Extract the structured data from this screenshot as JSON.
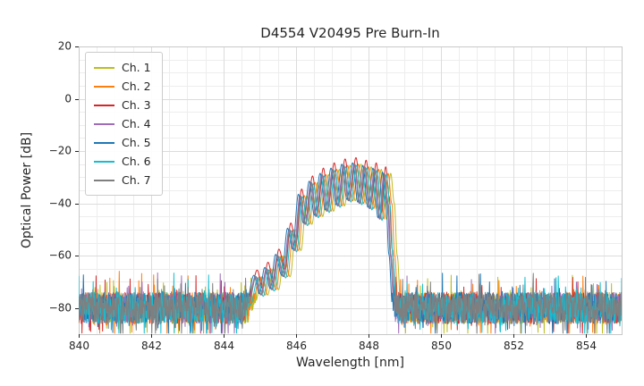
{
  "chart_data": {
    "type": "line",
    "title": "D4554 V20495 Pre Burn-In",
    "xlabel": "Wavelength [nm]",
    "ylabel": "Optical Power [dB]",
    "xlim": [
      840,
      855
    ],
    "ylim": [
      -90,
      20
    ],
    "xticks": [
      840,
      842,
      844,
      846,
      848,
      850,
      852,
      854
    ],
    "yticks": [
      20,
      0,
      -20,
      -40,
      -60,
      -80
    ],
    "minor_grid": {
      "x_step": 0.5,
      "y_step": 5
    },
    "grid": true,
    "legend_position": "upper left",
    "noise_floor": {
      "mean_db": -80,
      "span_db": 12,
      "spike_prob": 0.12,
      "spike_span_db": 18,
      "seed": 424242
    },
    "envelope_points": [
      [
        844.55,
        -88
      ],
      [
        844.75,
        -78
      ],
      [
        844.95,
        -68
      ],
      [
        845.1,
        -75
      ],
      [
        845.25,
        -65
      ],
      [
        845.4,
        -73
      ],
      [
        845.55,
        -60
      ],
      [
        845.72,
        -68
      ],
      [
        845.88,
        -50
      ],
      [
        846.02,
        -58
      ],
      [
        846.18,
        -37
      ],
      [
        846.32,
        -48
      ],
      [
        846.48,
        -32
      ],
      [
        846.62,
        -45
      ],
      [
        846.78,
        -29
      ],
      [
        846.92,
        -43
      ],
      [
        847.08,
        -27
      ],
      [
        847.22,
        -41
      ],
      [
        847.38,
        -25.5
      ],
      [
        847.52,
        -39
      ],
      [
        847.68,
        -25
      ],
      [
        847.82,
        -40
      ],
      [
        847.96,
        -26
      ],
      [
        848.1,
        -42
      ],
      [
        848.24,
        -27
      ],
      [
        848.38,
        -46
      ],
      [
        848.5,
        -28.5
      ],
      [
        848.6,
        -40
      ],
      [
        848.68,
        -60
      ],
      [
        848.78,
        -80
      ],
      [
        848.88,
        -95
      ]
    ],
    "series": [
      {
        "name": "Ch. 1",
        "color": "#bcbd22",
        "offset_nm": 0.12,
        "peak_adjust_db": 0
      },
      {
        "name": "Ch. 2",
        "color": "#ff7f0e",
        "offset_nm": 0.05,
        "peak_adjust_db": 0
      },
      {
        "name": "Ch. 3",
        "color": "#d62728",
        "offset_nm": -0.02,
        "peak_adjust_db": 2.5
      },
      {
        "name": "Ch. 4",
        "color": "#9e6db8",
        "offset_nm": -0.07,
        "peak_adjust_db": 0
      },
      {
        "name": "Ch. 5",
        "color": "#1f77b4",
        "offset_nm": -0.11,
        "peak_adjust_db": 0.5
      },
      {
        "name": "Ch. 6",
        "color": "#17becf",
        "offset_nm": 0.0,
        "peak_adjust_db": -0.5
      },
      {
        "name": "Ch. 7",
        "color": "#7f7f7f",
        "offset_nm": -0.05,
        "peak_adjust_db": 0
      }
    ]
  }
}
